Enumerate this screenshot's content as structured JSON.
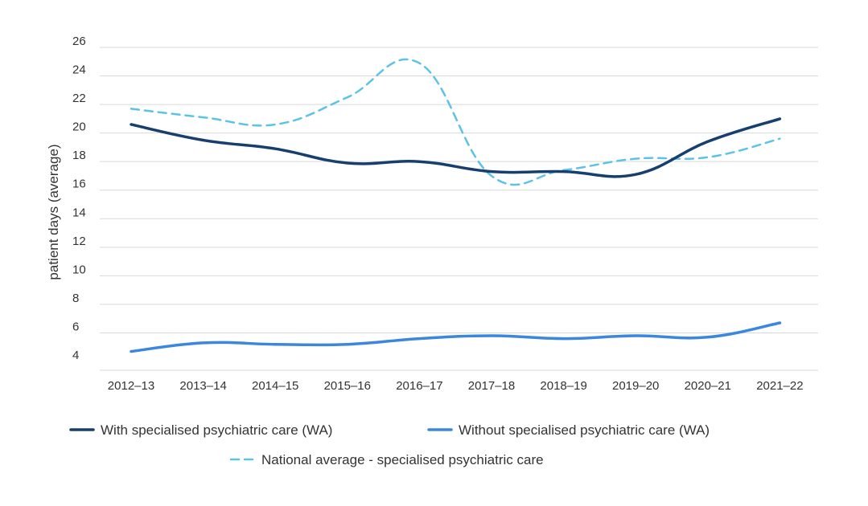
{
  "chart_data": {
    "type": "line",
    "ylabel": "patient days (average)",
    "xlabel": "",
    "categories": [
      "2012–13",
      "2013–14",
      "2014–15",
      "2015–16",
      "2016–17",
      "2017–18",
      "2018–19",
      "2019–20",
      "2020–21",
      "2021–22"
    ],
    "yticks": [
      "4",
      "6",
      "8",
      "10",
      "12",
      "14",
      "16",
      "18",
      "20",
      "22",
      "24",
      "26"
    ],
    "ylim": [
      4,
      26
    ],
    "grid": true,
    "legend_position": "bottom",
    "series": [
      {
        "name": "With specialised psychiatric care (WA)",
        "color": "#163f70",
        "dash": "solid",
        "values": [
          20.6,
          19.5,
          18.9,
          17.9,
          18.0,
          17.3,
          17.3,
          17.1,
          19.4,
          21.0
        ]
      },
      {
        "name": "Without specialised psychiatric care (WA)",
        "color": "#3b87e0",
        "dash": "solid",
        "values": [
          4.7,
          5.3,
          5.2,
          5.2,
          5.6,
          5.8,
          5.6,
          5.8,
          5.7,
          6.7
        ]
      },
      {
        "name": "National average - specialised psychiatric care",
        "color": "#5cc3e8",
        "dash": "dashed",
        "values": [
          21.7,
          21.1,
          20.6,
          22.5,
          24.9,
          17.0,
          17.4,
          18.2,
          18.3,
          19.6
        ]
      }
    ]
  }
}
